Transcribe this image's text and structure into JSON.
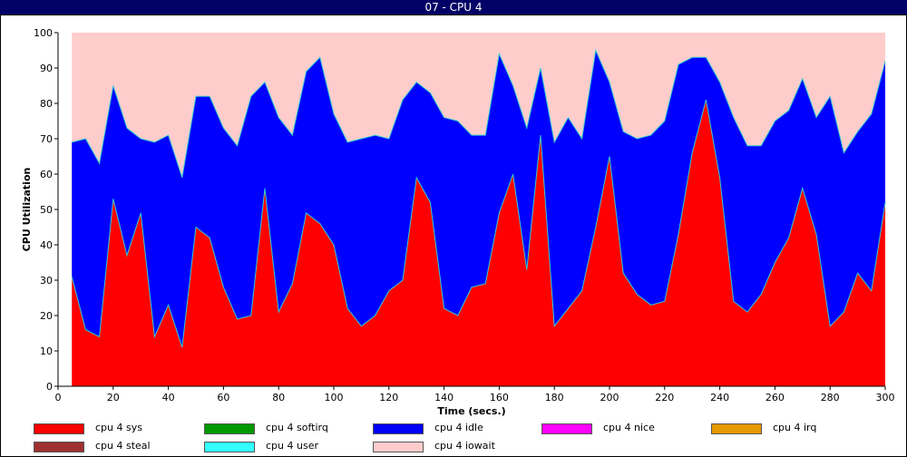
{
  "window_title": "07 - CPU 4",
  "chart_data": {
    "type": "area",
    "stacked": true,
    "xlabel": "Time (secs.)",
    "ylabel": "CPU Utilization",
    "xlim": [
      0,
      300
    ],
    "ylim": [
      0,
      100
    ],
    "xticks": [
      "0",
      "20",
      "40",
      "60",
      "80",
      "100",
      "120",
      "140",
      "160",
      "180",
      "200",
      "220",
      "240",
      "260",
      "280",
      "300"
    ],
    "yticks": [
      "0",
      "10",
      "20",
      "30",
      "40",
      "50",
      "60",
      "70",
      "80",
      "90",
      "100"
    ],
    "x": [
      5,
      10,
      15,
      20,
      25,
      30,
      35,
      40,
      45,
      50,
      55,
      60,
      65,
      70,
      75,
      80,
      85,
      90,
      95,
      100,
      105,
      110,
      115,
      120,
      125,
      130,
      135,
      140,
      145,
      150,
      155,
      160,
      165,
      170,
      175,
      180,
      185,
      190,
      195,
      200,
      205,
      210,
      215,
      220,
      225,
      230,
      235,
      240,
      245,
      250,
      255,
      260,
      265,
      270,
      275,
      280,
      285,
      290,
      295,
      300
    ],
    "series": [
      {
        "name": "cpu 4 sys",
        "color": "#ff0000",
        "values": [
          31,
          16,
          14,
          53,
          37,
          49,
          14,
          23,
          11,
          45,
          42,
          28,
          19,
          20,
          56,
          21,
          29,
          49,
          46,
          40,
          22,
          17,
          20,
          27,
          30,
          59,
          52,
          22,
          20,
          28,
          29,
          49,
          60,
          33,
          71,
          17,
          22,
          27,
          45,
          65,
          32,
          26,
          23,
          24,
          43,
          66,
          81,
          59,
          24,
          21,
          26,
          35,
          42,
          56,
          43,
          17,
          21,
          32,
          27,
          52
        ]
      },
      {
        "name": "cpu 4 softirq",
        "color": "#009900",
        "values": [
          0,
          0,
          0,
          0,
          0,
          0,
          0,
          0,
          0,
          0,
          0,
          0,
          0,
          0,
          0,
          0,
          0,
          0,
          0,
          0,
          0,
          0,
          0,
          0,
          0,
          0,
          0,
          0,
          0,
          0,
          0,
          0,
          0,
          0,
          0,
          0,
          0,
          0,
          0,
          0,
          0,
          0,
          0,
          0,
          0,
          0,
          0,
          0,
          0,
          0,
          0,
          0,
          0,
          0,
          0,
          0,
          0,
          0,
          0,
          0
        ]
      },
      {
        "name": "cpu 4 idle",
        "color": "#0000ff",
        "values": [
          38,
          54,
          49,
          32,
          36,
          21,
          55,
          48,
          48,
          37,
          40,
          45,
          49,
          62,
          30,
          55,
          42,
          40,
          47,
          37,
          47,
          53,
          51,
          43,
          51,
          27,
          31,
          54,
          55,
          43,
          42,
          45,
          25,
          40,
          19,
          52,
          54,
          43,
          50,
          21,
          40,
          44,
          48,
          51,
          48,
          27,
          12,
          27,
          52,
          47,
          42,
          40,
          36,
          31,
          33,
          65,
          45,
          40,
          50,
          40
        ]
      },
      {
        "name": "cpu 4 nice",
        "color": "#ff00ff",
        "values": [
          0,
          0,
          0,
          0,
          0,
          0,
          0,
          0,
          0,
          0,
          0,
          0,
          0,
          0,
          0,
          0,
          0,
          0,
          0,
          0,
          0,
          0,
          0,
          0,
          0,
          0,
          0,
          0,
          0,
          0,
          0,
          0,
          0,
          0,
          0,
          0,
          0,
          0,
          0,
          0,
          0,
          0,
          0,
          0,
          0,
          0,
          0,
          0,
          0,
          0,
          0,
          0,
          0,
          0,
          0,
          0,
          0,
          0,
          0,
          0
        ]
      },
      {
        "name": "cpu 4 irq",
        "color": "#e69900",
        "values": [
          0,
          0,
          0,
          0,
          0,
          0,
          0,
          0,
          0,
          0,
          0,
          0,
          0,
          0,
          0,
          0,
          0,
          0,
          0,
          0,
          0,
          0,
          0,
          0,
          0,
          0,
          0,
          0,
          0,
          0,
          0,
          0,
          0,
          0,
          0,
          0,
          0,
          0,
          0,
          0,
          0,
          0,
          0,
          0,
          0,
          0,
          0,
          0,
          0,
          0,
          0,
          0,
          0,
          0,
          0,
          0,
          0,
          0,
          0,
          0
        ]
      },
      {
        "name": "cpu 4 steal",
        "color": "#a03030",
        "values": [
          0,
          0,
          0,
          0,
          0,
          0,
          0,
          0,
          0,
          0,
          0,
          0,
          0,
          0,
          0,
          0,
          0,
          0,
          0,
          0,
          0,
          0,
          0,
          0,
          0,
          0,
          0,
          0,
          0,
          0,
          0,
          0,
          0,
          0,
          0,
          0,
          0,
          0,
          0,
          0,
          0,
          0,
          0,
          0,
          0,
          0,
          0,
          0,
          0,
          0,
          0,
          0,
          0,
          0,
          0,
          0,
          0,
          0,
          0,
          0
        ]
      },
      {
        "name": "cpu 4 user",
        "color": "#33ffff",
        "values": [
          0,
          0,
          0,
          0,
          0,
          0,
          0,
          0,
          0,
          0,
          0,
          0,
          0,
          0,
          0,
          0,
          0,
          0,
          0,
          0,
          0,
          0,
          0,
          0,
          0,
          0,
          0,
          0,
          0,
          0,
          0,
          0,
          0,
          0,
          0,
          0,
          0,
          0,
          0,
          0,
          0,
          0,
          0,
          0,
          0,
          0,
          0,
          0,
          0,
          0,
          0,
          0,
          0,
          0,
          0,
          0,
          0,
          0,
          0,
          0
        ]
      },
      {
        "name": "cpu 4 iowait",
        "color": "#ffcccc",
        "values": [
          31,
          30,
          37,
          15,
          27,
          30,
          31,
          29,
          41,
          18,
          18,
          27,
          32,
          18,
          14,
          24,
          29,
          11,
          7,
          23,
          31,
          30,
          29,
          30,
          19,
          14,
          17,
          24,
          25,
          29,
          29,
          6,
          15,
          27,
          10,
          31,
          24,
          30,
          5,
          14,
          28,
          30,
          29,
          25,
          9,
          7,
          7,
          14,
          24,
          32,
          32,
          25,
          22,
          13,
          24,
          18,
          34,
          28,
          23,
          8
        ]
      }
    ]
  }
}
